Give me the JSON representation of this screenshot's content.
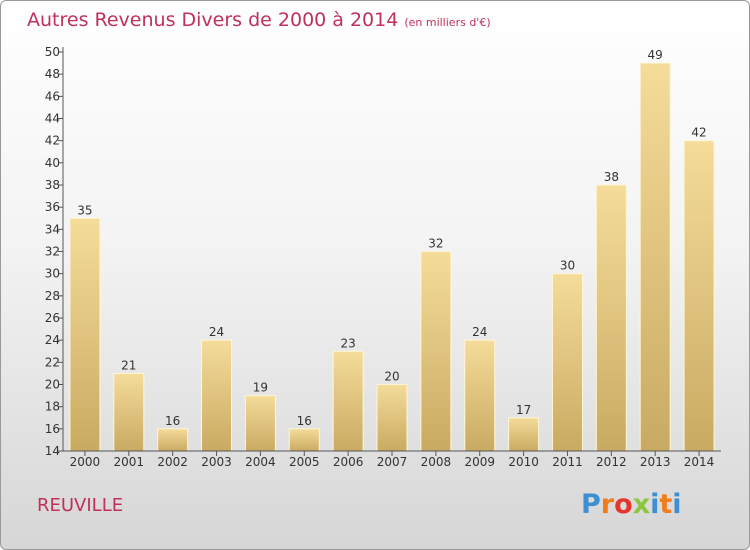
{
  "title": "Autres Revenus Divers de 2000 à 2014",
  "title_unit": "(en milliers d'€)",
  "city": "REUVILLE",
  "logo": {
    "text": "Proxiti",
    "letter_colors": [
      "#3d8fd1",
      "#f07d1a",
      "#e4352b",
      "#8cc63f",
      "#3d8fd1",
      "#f07d1a",
      "#3d8fd1"
    ]
  },
  "chart_data": {
    "type": "bar",
    "title": "Autres Revenus Divers de 2000 à 2014",
    "xlabel": "",
    "ylabel": "",
    "categories": [
      "2000",
      "2001",
      "2002",
      "2003",
      "2004",
      "2005",
      "2006",
      "2007",
      "2008",
      "2009",
      "2010",
      "2011",
      "2012",
      "2013",
      "2014"
    ],
    "values": [
      35,
      21,
      16,
      24,
      19,
      16,
      23,
      20,
      32,
      24,
      17,
      30,
      38,
      49,
      42
    ],
    "ylim": [
      14,
      50
    ],
    "yticks": [
      14,
      16,
      18,
      20,
      22,
      24,
      26,
      28,
      30,
      32,
      34,
      36,
      38,
      40,
      42,
      44,
      46,
      48,
      50
    ],
    "grid": false,
    "legend": "none",
    "bar_color_light": "#f5dc9a",
    "bar_color_dark": "#c9aa62"
  }
}
